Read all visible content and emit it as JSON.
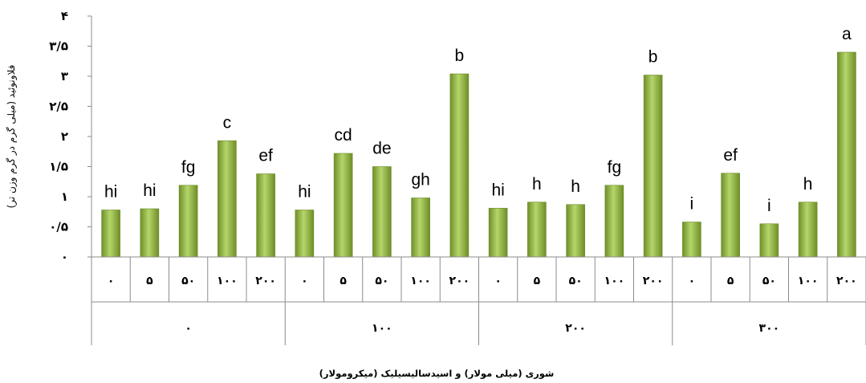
{
  "chart_data": {
    "type": "bar",
    "ylabel": "فلاونوئید (میلی گرم در گرم وزن تر)",
    "xlabel": "شوری (میلی مولار) و اسیدسالیسیلیک (میکرومولار)",
    "ylim": [
      0,
      4
    ],
    "yticks": [
      0,
      0.5,
      1,
      1.5,
      2,
      2.5,
      3,
      3.5,
      4
    ],
    "ytick_labels": [
      "۰",
      "۰/۵",
      "۱",
      "۱/۵",
      "۲",
      "۲/۵",
      "۳",
      "۳/۵",
      "۴"
    ],
    "grid": false,
    "legend": "none",
    "bar_color": "#8db33a",
    "groups": [
      {
        "label": "۰",
        "bars": [
          {
            "category": "۰",
            "value": 0.78,
            "letter": "hi"
          },
          {
            "category": "۵",
            "value": 0.8,
            "letter": "hi"
          },
          {
            "category": "۵۰",
            "value": 1.19,
            "letter": "fg"
          },
          {
            "category": "۱۰۰",
            "value": 1.93,
            "letter": "c"
          },
          {
            "category": "۲۰۰",
            "value": 1.38,
            "letter": "ef"
          }
        ]
      },
      {
        "label": "۱۰۰",
        "bars": [
          {
            "category": "۰",
            "value": 0.78,
            "letter": "hi"
          },
          {
            "category": "۵",
            "value": 1.72,
            "letter": "cd"
          },
          {
            "category": "۵۰",
            "value": 1.5,
            "letter": "de"
          },
          {
            "category": "۱۰۰",
            "value": 0.98,
            "letter": "gh"
          },
          {
            "category": "۲۰۰",
            "value": 3.04,
            "letter": "b"
          }
        ]
      },
      {
        "label": "۲۰۰",
        "bars": [
          {
            "category": "۰",
            "value": 0.81,
            "letter": "hi"
          },
          {
            "category": "۵",
            "value": 0.91,
            "letter": "h"
          },
          {
            "category": "۵۰",
            "value": 0.87,
            "letter": "h"
          },
          {
            "category": "۱۰۰",
            "value": 1.19,
            "letter": "fg"
          },
          {
            "category": "۲۰۰",
            "value": 3.02,
            "letter": "b"
          }
        ]
      },
      {
        "label": "۳۰۰",
        "bars": [
          {
            "category": "۰",
            "value": 0.58,
            "letter": "i"
          },
          {
            "category": "۵",
            "value": 1.39,
            "letter": "ef"
          },
          {
            "category": "۵۰",
            "value": 0.55,
            "letter": "i"
          },
          {
            "category": "۱۰۰",
            "value": 0.91,
            "letter": "h"
          },
          {
            "category": "۲۰۰",
            "value": 3.4,
            "letter": "a"
          }
        ]
      }
    ]
  }
}
